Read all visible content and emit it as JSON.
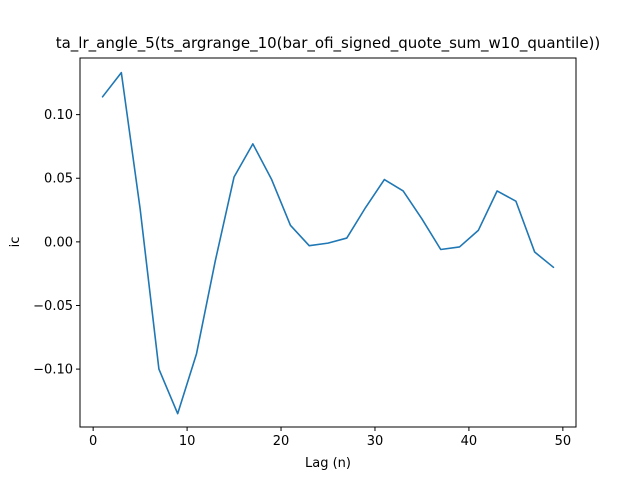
{
  "chart_data": {
    "type": "line",
    "title": "ta_lr_angle_5(ts_argrange_10(bar_ofi_signed_quote_sum_w10_quantile))",
    "xlabel": "Lag (n)",
    "ylabel": "ic",
    "xlim": [
      -1.4,
      51.4
    ],
    "ylim": [
      -0.1455,
      0.1445
    ],
    "xticks": [
      0,
      10,
      20,
      30,
      40,
      50
    ],
    "xtick_labels": [
      "0",
      "10",
      "20",
      "30",
      "40",
      "50"
    ],
    "yticks": [
      -0.1,
      -0.05,
      0.0,
      0.05,
      0.1
    ],
    "ytick_labels": [
      "−0.10",
      "−0.05",
      "0.00",
      "0.05",
      "0.10"
    ],
    "grid": false,
    "series": [
      {
        "color": "#1f77b4",
        "x": [
          1,
          3,
          5,
          7,
          9,
          11,
          13,
          15,
          17,
          19,
          21,
          23,
          25,
          27,
          29,
          31,
          33,
          35,
          37,
          39,
          41,
          43,
          45,
          47,
          49
        ],
        "y": [
          0.114,
          0.133,
          0.026,
          -0.1,
          -0.135,
          -0.088,
          -0.015,
          0.051,
          0.077,
          0.049,
          0.013,
          -0.003,
          -0.001,
          0.003,
          0.027,
          0.049,
          0.04,
          0.018,
          -0.006,
          -0.004,
          0.009,
          0.04,
          0.032,
          -0.008,
          -0.02
        ]
      }
    ]
  }
}
